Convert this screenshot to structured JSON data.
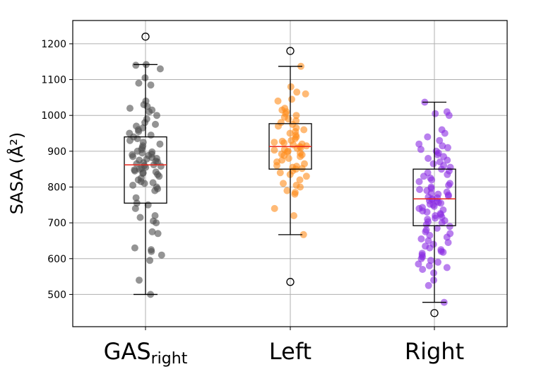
{
  "chart_data": {
    "type": "box",
    "title": "",
    "xlabel": "",
    "ylabel": "SASA (Å²)",
    "ylim": [
      410,
      1265
    ],
    "yticks": [
      500,
      600,
      700,
      800,
      900,
      1000,
      1100,
      1200
    ],
    "grid": true,
    "legend": "none",
    "categories": [
      {
        "main": "GAS",
        "sub": "right"
      },
      {
        "main": "Left",
        "sub": ""
      },
      {
        "main": "Right",
        "sub": ""
      }
    ],
    "series": [
      {
        "color": "#4d4d4d",
        "box": {
          "whisker_low": 500,
          "q1": 755,
          "median": 862,
          "q3": 940,
          "whisker_high": 1142
        },
        "outliers": [
          1220
        ],
        "points": [
          500,
          540,
          595,
          610,
          620,
          625,
          630,
          670,
          675,
          700,
          705,
          715,
          720,
          740,
          750,
          755,
          770,
          790,
          795,
          800,
          805,
          810,
          812,
          815,
          820,
          825,
          830,
          835,
          838,
          840,
          842,
          845,
          848,
          850,
          852,
          855,
          858,
          860,
          862,
          865,
          868,
          870,
          872,
          875,
          878,
          880,
          882,
          885,
          888,
          890,
          892,
          895,
          898,
          900,
          905,
          910,
          915,
          920,
          925,
          930,
          935,
          940,
          945,
          950,
          955,
          960,
          965,
          970,
          975,
          980,
          990,
          1000,
          1010,
          1015,
          1020,
          1025,
          1030,
          1040,
          1085,
          1090,
          1105,
          1130,
          1140,
          1142
        ]
      },
      {
        "color": "#ff8c1a",
        "box": {
          "whisker_low": 667,
          "q1": 850,
          "median": 913,
          "q3": 977,
          "whisker_high": 1137
        },
        "outliers": [
          1180,
          535
        ],
        "points": [
          667,
          720,
          740,
          780,
          785,
          790,
          800,
          805,
          810,
          820,
          830,
          835,
          840,
          845,
          850,
          852,
          855,
          858,
          860,
          865,
          870,
          875,
          880,
          885,
          888,
          890,
          892,
          895,
          898,
          900,
          903,
          905,
          908,
          910,
          913,
          915,
          918,
          920,
          923,
          925,
          928,
          930,
          935,
          940,
          945,
          950,
          955,
          960,
          965,
          970,
          975,
          980,
          985,
          990,
          995,
          1000,
          1005,
          1010,
          1015,
          1020,
          1040,
          1045,
          1060,
          1065,
          1080,
          1137
        ]
      },
      {
        "color": "#8a2be2",
        "box": {
          "whisker_low": 478,
          "q1": 692,
          "median": 767,
          "q3": 850,
          "whisker_high": 1037
        },
        "outliers": [
          448
        ],
        "points": [
          478,
          525,
          540,
          560,
          570,
          575,
          580,
          585,
          590,
          595,
          600,
          605,
          610,
          615,
          618,
          620,
          625,
          630,
          635,
          640,
          645,
          650,
          655,
          660,
          665,
          670,
          675,
          680,
          685,
          690,
          695,
          700,
          703,
          706,
          710,
          713,
          716,
          720,
          723,
          726,
          730,
          733,
          736,
          740,
          743,
          746,
          750,
          752,
          755,
          757,
          760,
          762,
          765,
          767,
          770,
          772,
          775,
          778,
          780,
          783,
          786,
          790,
          793,
          796,
          800,
          805,
          810,
          815,
          820,
          825,
          830,
          835,
          840,
          845,
          850,
          855,
          860,
          865,
          870,
          875,
          880,
          885,
          890,
          895,
          900,
          905,
          910,
          915,
          920,
          930,
          940,
          950,
          960,
          1000,
          1005,
          1010,
          1037
        ]
      }
    ]
  }
}
